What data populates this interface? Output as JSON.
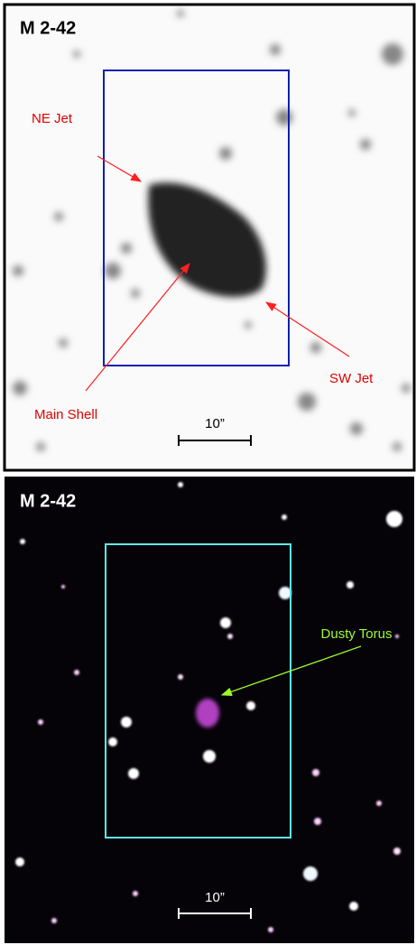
{
  "panels": [
    {
      "title": "M 2-42",
      "labels": [
        "NE Jet",
        "Main Shell",
        "SW Jet"
      ],
      "scale_bar": "10”"
    },
    {
      "title": "M 2-42",
      "labels": [
        "Dusty Torus"
      ],
      "scale_bar": "10”"
    }
  ]
}
